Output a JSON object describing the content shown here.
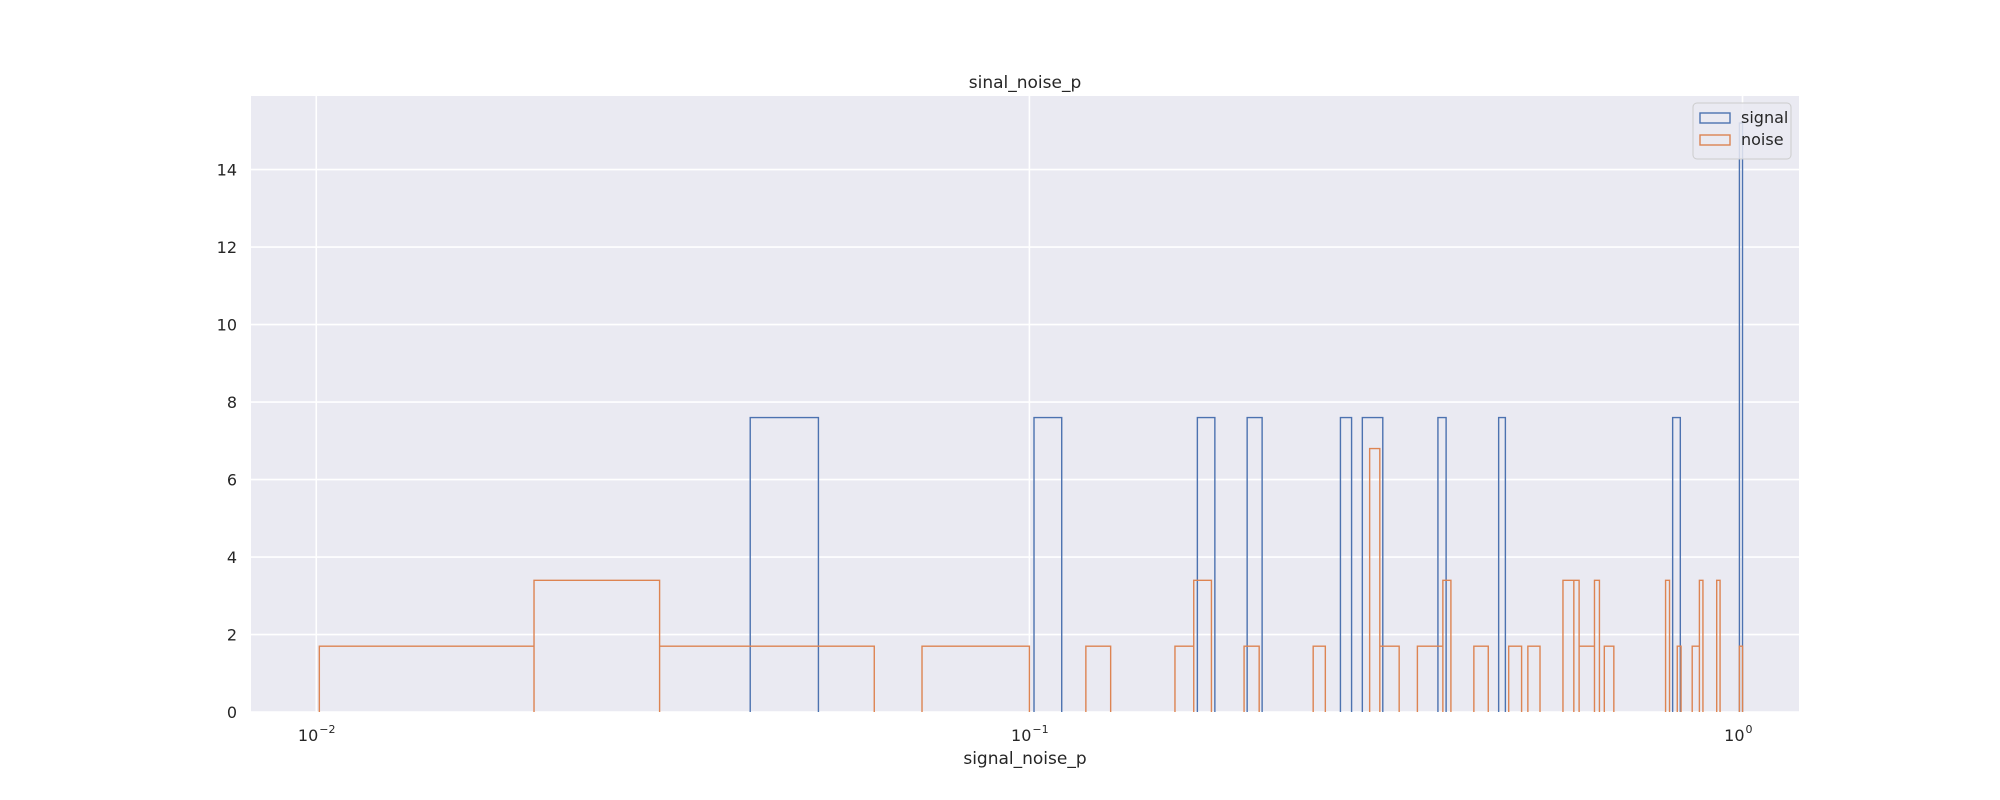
{
  "chart_data": {
    "type": "histogram",
    "title": "sinal_noise_p",
    "xlabel": "signal_noise_p",
    "ylabel": "",
    "x_scale": "log",
    "xlim": [
      0.0081,
      1.2
    ],
    "ylim": [
      0,
      15.9
    ],
    "grid": true,
    "legend_position": "top-right",
    "x_ticks": [
      0.01,
      0.1,
      1
    ],
    "x_tick_labels": [
      "10",
      "10",
      "10"
    ],
    "x_tick_exponents": [
      "−2",
      "−1",
      "0"
    ],
    "y_ticks": [
      0,
      2,
      4,
      6,
      8,
      10,
      12,
      14
    ],
    "y_tick_labels": [
      "0",
      "2",
      "4",
      "6",
      "8",
      "10",
      "12",
      "14"
    ],
    "series": [
      {
        "name": "signal",
        "color": "#4c72b0",
        "bins": [
          {
            "x0": 0.0406,
            "x1": 0.0506,
            "y": 7.6
          },
          {
            "x0": 0.1015,
            "x1": 0.111,
            "y": 7.6
          },
          {
            "x0": 0.172,
            "x1": 0.182,
            "y": 7.6
          },
          {
            "x0": 0.202,
            "x1": 0.212,
            "y": 7.6
          },
          {
            "x0": 0.273,
            "x1": 0.283,
            "y": 7.6
          },
          {
            "x0": 0.293,
            "x1": 0.313,
            "y": 7.6
          },
          {
            "x0": 0.374,
            "x1": 0.384,
            "y": 7.6
          },
          {
            "x0": 0.455,
            "x1": 0.465,
            "y": 7.6
          },
          {
            "x0": 0.798,
            "x1": 0.818,
            "y": 7.6
          },
          {
            "x0": 0.99,
            "x1": 1.0,
            "y": 15.2
          }
        ]
      },
      {
        "name": "noise",
        "color": "#dd8452",
        "bins": [
          {
            "x0": 0.0101,
            "x1": 0.0202,
            "y": 1.7
          },
          {
            "x0": 0.0202,
            "x1": 0.0303,
            "y": 3.4
          },
          {
            "x0": 0.0303,
            "x1": 0.0606,
            "y": 1.7
          },
          {
            "x0": 0.0707,
            "x1": 0.1,
            "y": 1.7
          },
          {
            "x0": 0.12,
            "x1": 0.13,
            "y": 1.7
          },
          {
            "x0": 0.16,
            "x1": 0.17,
            "y": 1.7
          },
          {
            "x0": 0.17,
            "x1": 0.18,
            "y": 3.4
          },
          {
            "x0": 0.2,
            "x1": 0.21,
            "y": 1.7
          },
          {
            "x0": 0.25,
            "x1": 0.26,
            "y": 1.7
          },
          {
            "x0": 0.3,
            "x1": 0.31,
            "y": 6.8
          },
          {
            "x0": 0.31,
            "x1": 0.33,
            "y": 1.7
          },
          {
            "x0": 0.35,
            "x1": 0.38,
            "y": 1.7
          },
          {
            "x0": 0.38,
            "x1": 0.39,
            "y": 3.4
          },
          {
            "x0": 0.42,
            "x1": 0.44,
            "y": 1.7
          },
          {
            "x0": 0.47,
            "x1": 0.49,
            "y": 1.7
          },
          {
            "x0": 0.5,
            "x1": 0.52,
            "y": 1.7
          },
          {
            "x0": 0.56,
            "x1": 0.58,
            "y": 3.4
          },
          {
            "x0": 0.58,
            "x1": 0.59,
            "y": 3.4
          },
          {
            "x0": 0.59,
            "x1": 0.62,
            "y": 1.7
          },
          {
            "x0": 0.62,
            "x1": 0.63,
            "y": 3.4
          },
          {
            "x0": 0.64,
            "x1": 0.66,
            "y": 1.7
          },
          {
            "x0": 0.78,
            "x1": 0.79,
            "y": 3.4
          },
          {
            "x0": 0.81,
            "x1": 0.82,
            "y": 1.7
          },
          {
            "x0": 0.85,
            "x1": 0.87,
            "y": 1.7
          },
          {
            "x0": 0.87,
            "x1": 0.88,
            "y": 3.4
          },
          {
            "x0": 0.92,
            "x1": 0.93,
            "y": 3.4
          },
          {
            "x0": 0.99,
            "x1": 1.0,
            "y": 1.7
          }
        ]
      }
    ]
  }
}
